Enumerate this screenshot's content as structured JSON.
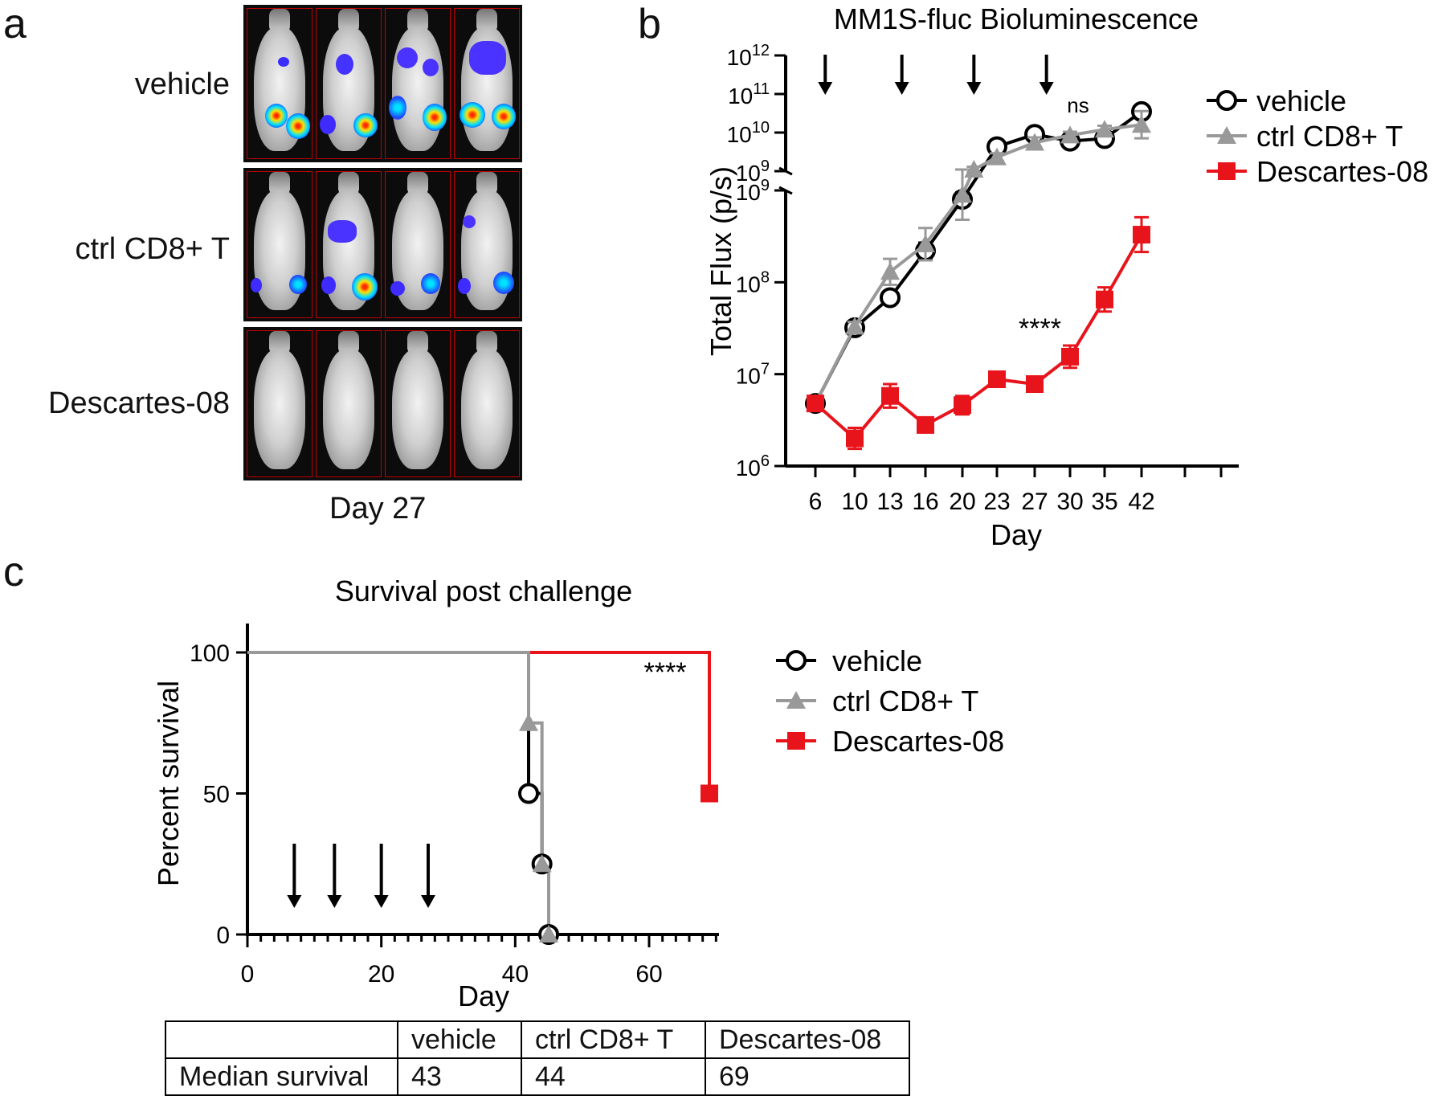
{
  "panels": {
    "a": {
      "letter": "a",
      "rows": [
        "vehicle",
        "ctrl CD8+ T",
        "Descartes-08"
      ],
      "caption": "Day 27"
    },
    "b": {
      "letter": "b"
    },
    "c": {
      "letter": "c"
    }
  },
  "colors": {
    "vehicle": "#000000",
    "ctrl": "#999999",
    "descartes": "#e8141c"
  },
  "chart_data": [
    {
      "type": "line",
      "id": "bioluminescence",
      "title": "MM1S-fluc Bioluminescence",
      "xlabel": "Day",
      "ylabel": "Total Flux (p/s)",
      "yscale": "log",
      "broken_axis": {
        "lower": [
          1000000.0,
          1000000000.0
        ],
        "upper": [
          1000000000.0,
          1000000000000.0
        ]
      },
      "x_ticks": [
        "6",
        "10",
        "13",
        "16",
        "20",
        "23",
        "27",
        "30",
        "35",
        "42"
      ],
      "y_ticks_lower": [
        "10^6",
        "10^7",
        "10^8",
        "10^9"
      ],
      "y_ticks_upper": [
        "10^9",
        "10^10",
        "10^11",
        "10^12"
      ],
      "treatment_days": [
        7,
        14,
        21,
        28
      ],
      "series": [
        {
          "name": "vehicle",
          "marker": "open-circle",
          "points": [
            [
              6,
              4800000.0
            ],
            [
              10,
              32000000.0
            ],
            [
              13,
              68000000.0
            ],
            [
              16,
              220000000.0
            ],
            [
              20,
              800000000.0
            ],
            [
              23,
              4300000000.0
            ],
            [
              27,
              9000000000.0
            ],
            [
              30,
              6000000000.0
            ],
            [
              35,
              7000000000.0
            ],
            [
              42,
              35000000000.0
            ]
          ],
          "err_plus": [
            0,
            4000000.0,
            12000000.0,
            50000000.0,
            150000000.0,
            1000000000.0,
            2000000000.0,
            2000000000.0,
            2000000000.0,
            8000000000.0
          ]
        },
        {
          "name": "ctrl CD8+ T",
          "marker": "triangle",
          "points": [
            [
              6,
              4800000.0
            ],
            [
              10,
              33000000.0
            ],
            [
              13,
              130000000.0
            ],
            [
              16,
              260000000.0
            ],
            [
              20,
              900000000.0
            ],
            [
              21,
              1100000000.0
            ],
            [
              23,
              2300000000.0
            ],
            [
              27,
              5500000000.0
            ],
            [
              30,
              8500000000.0
            ],
            [
              35,
              12000000000.0
            ],
            [
              42,
              16000000000.0
            ]
          ],
          "err_plus": [
            0,
            4000000.0,
            50000000.0,
            130000000.0,
            200000000.0,
            200000000.0,
            600000000.0,
            2000000000.0,
            2000000000.0,
            3000000000.0,
            20000000000.0
          ]
        },
        {
          "name": "Descartes-08",
          "marker": "filled-square",
          "points": [
            [
              6,
              4800000.0
            ],
            [
              10,
              2000000.0
            ],
            [
              13,
              5800000.0
            ],
            [
              16,
              2800000.0
            ],
            [
              20,
              4600000.0
            ],
            [
              23,
              8800000.0
            ],
            [
              27,
              7800000.0
            ],
            [
              30,
              15500000.0
            ],
            [
              35,
              65000000.0
            ],
            [
              42,
              330000000.0
            ]
          ],
          "err_plus": [
            0,
            600000.0,
            2000000.0,
            400000.0,
            1200000.0,
            1000000.0,
            1000000.0,
            5000000.0,
            23000000.0,
            180000000.0
          ]
        }
      ],
      "annotations": [
        "****",
        "ns"
      ],
      "legend_position": "right"
    },
    {
      "type": "line",
      "id": "survival",
      "title": "Survival post challenge",
      "xlabel": "Day",
      "ylabel": "Percent survival",
      "xlim": [
        0,
        70
      ],
      "ylim": [
        0,
        100
      ],
      "x_ticks": [
        "0",
        "20",
        "40",
        "60"
      ],
      "y_ticks": [
        "0",
        "50",
        "100"
      ],
      "treatment_days": [
        7,
        13,
        20,
        27
      ],
      "series": [
        {
          "name": "vehicle",
          "marker": "open-circle",
          "steps": [
            [
              0,
              100
            ],
            [
              42,
              100
            ],
            [
              42,
              50
            ],
            [
              44,
              50
            ],
            [
              44,
              25
            ],
            [
              45,
              25
            ],
            [
              45,
              0
            ]
          ]
        },
        {
          "name": "ctrl CD8+ T",
          "marker": "triangle",
          "steps": [
            [
              0,
              100
            ],
            [
              42,
              100
            ],
            [
              42,
              75
            ],
            [
              44,
              75
            ],
            [
              44,
              25
            ],
            [
              45,
              25
            ],
            [
              45,
              0
            ]
          ]
        },
        {
          "name": "Descartes-08",
          "marker": "filled-square",
          "steps": [
            [
              0,
              100
            ],
            [
              42,
              100
            ],
            [
              69,
              100
            ],
            [
              69,
              50
            ]
          ]
        }
      ],
      "annotation": "****",
      "legend_position": "right"
    }
  ],
  "median_table": {
    "headers": [
      "",
      "vehicle",
      "ctrl CD8+ T",
      "Descartes-08"
    ],
    "row_label": "Median survival",
    "values": [
      "43",
      "44",
      "69"
    ]
  }
}
